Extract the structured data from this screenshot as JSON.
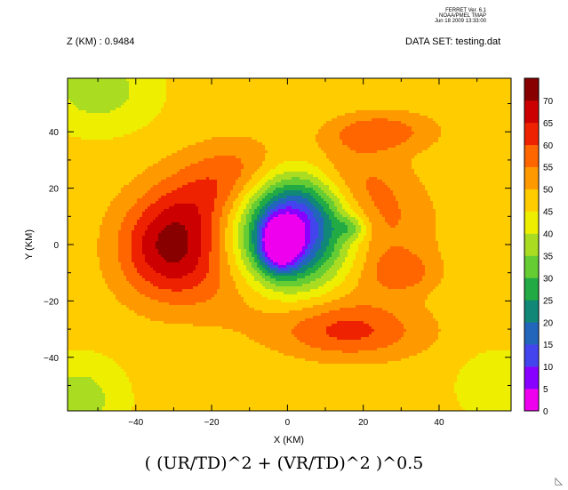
{
  "header": {
    "ferret_version": "FERRET Ver. 6.1",
    "org": "NOAA/PMEL TMAP",
    "timestamp": "Jun 18 2009 13:33:00",
    "z_label": "Z (KM) : 0.9484",
    "dataset_label": "DATA SET: testing.dat"
  },
  "footer": {
    "title": "( (UR/TD)^2 + (VR/TD)^2 )^0.5",
    "corner_mark": "◺"
  },
  "chart_data": {
    "type": "heatmap",
    "title": "( (UR/TD)^2 + (VR/TD)^2 )^0.5",
    "xlabel": "X (KM)",
    "ylabel": "Y (KM)",
    "xlim": [
      -58,
      59
    ],
    "ylim": [
      -59,
      59
    ],
    "x_ticks": [
      -40,
      -20,
      0,
      20,
      40
    ],
    "y_ticks": [
      40,
      20,
      0,
      -20,
      -40
    ],
    "colorbar": {
      "levels": [
        0,
        5,
        10,
        15,
        20,
        25,
        30,
        35,
        40,
        45,
        50,
        55,
        60,
        65,
        70
      ],
      "colors": [
        "#ee00ee",
        "#8800ff",
        "#4444ee",
        "#2266bb",
        "#118877",
        "#22aa44",
        "#66cc33",
        "#aadd22",
        "#eeee00",
        "#ffcc00",
        "#ff9900",
        "#ff6600",
        "#ee2200",
        "#cc0000",
        "#880000"
      ]
    },
    "field": {
      "background": 47,
      "features": [
        {
          "kind": "ring",
          "x": 0,
          "y": 3,
          "radius": 24,
          "width": 14,
          "amplitude": 14,
          "angle_modulation": 0.45,
          "phase_deg": 110
        },
        {
          "kind": "blob",
          "x": -33,
          "y": -2,
          "sigma_x": 9,
          "sigma_y": 13,
          "amplitude": 16
        },
        {
          "kind": "blob",
          "x": 16,
          "y": -31,
          "sigma_x": 14,
          "sigma_y": 7,
          "amplitude": 14
        },
        {
          "kind": "blob",
          "x": 24,
          "y": 40,
          "sigma_x": 10,
          "sigma_y": 5,
          "amplitude": 12
        },
        {
          "kind": "blob",
          "x": 31,
          "y": -10,
          "sigma_x": 6,
          "sigma_y": 5,
          "amplitude": 8
        },
        {
          "kind": "blob",
          "x": -2,
          "y": 0,
          "sigma_x": 3.5,
          "sigma_y": 6,
          "amplitude": -34
        },
        {
          "kind": "blob",
          "x": 2,
          "y": 10,
          "sigma_x": 9,
          "sigma_y": 16,
          "amplitude": -30
        },
        {
          "kind": "blob",
          "x": 0,
          "y": 5,
          "sigma_x": 16,
          "sigma_y": 22,
          "amplitude": -14
        },
        {
          "kind": "blob",
          "x": -50,
          "y": 55,
          "sigma_x": 10,
          "sigma_y": 10,
          "amplitude": -10
        },
        {
          "kind": "blob",
          "x": -55,
          "y": -55,
          "sigma_x": 8,
          "sigma_y": 10,
          "amplitude": -10
        },
        {
          "kind": "blob",
          "x": 55,
          "y": -50,
          "sigma_x": 8,
          "sigma_y": 10,
          "amplitude": -5
        },
        {
          "kind": "blob",
          "x": 17,
          "y": 6,
          "sigma_x": 3,
          "sigma_y": 3,
          "amplitude": -10
        }
      ]
    }
  }
}
